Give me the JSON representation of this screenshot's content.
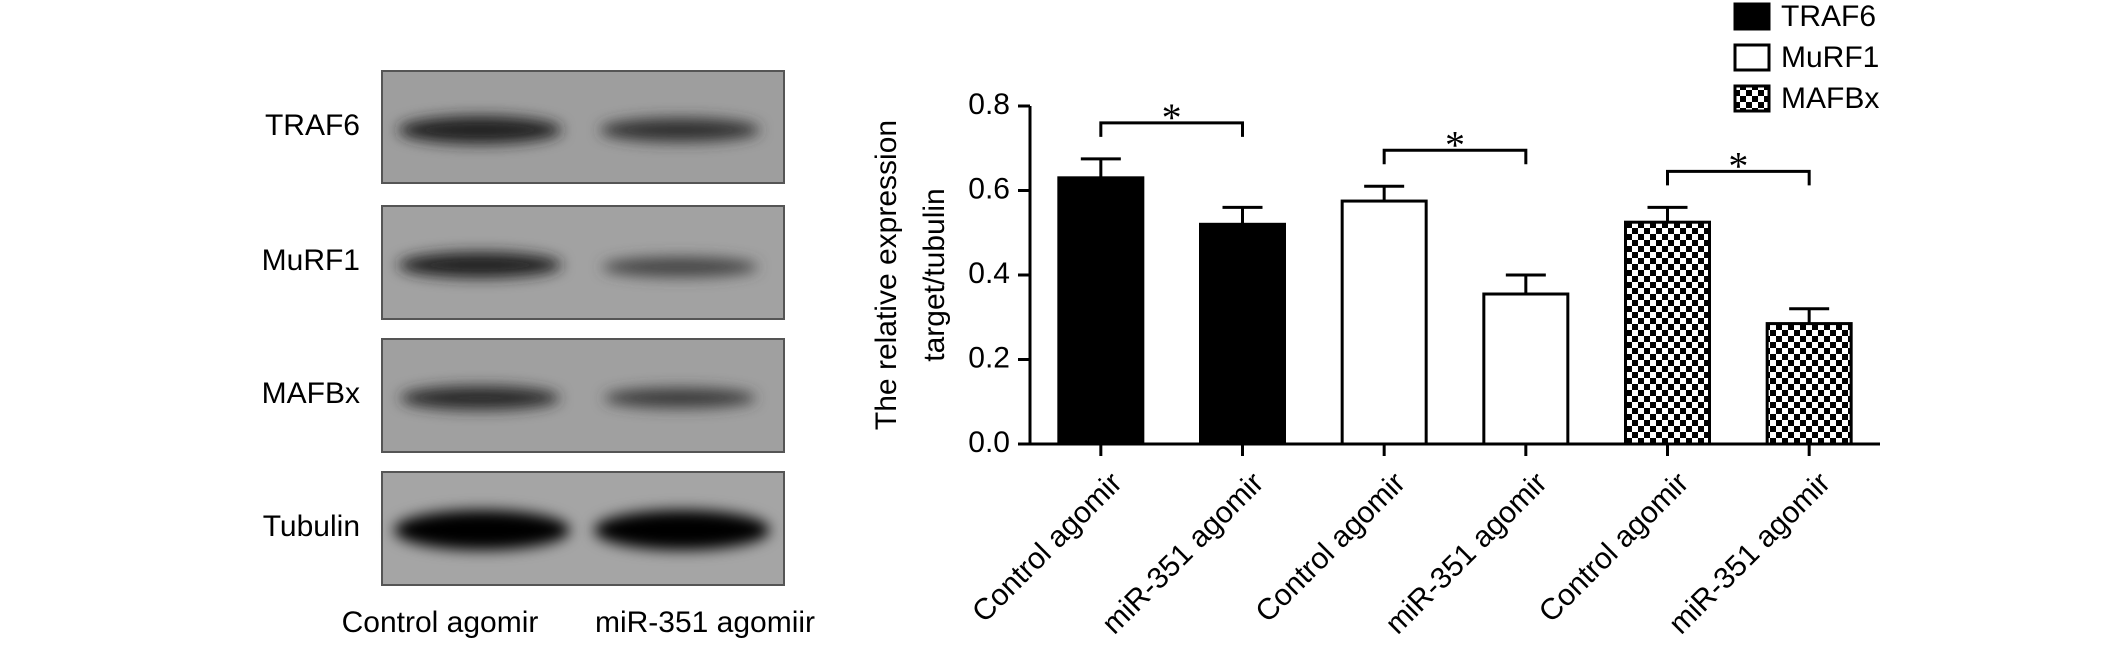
{
  "blot": {
    "rows": [
      "TRAF6",
      "MuRF1",
      "MAFBx",
      "Tubulin"
    ],
    "lanes": [
      "Control agomir",
      "miR-351 agomiir"
    ]
  },
  "chart_data": {
    "type": "bar",
    "ylabel": [
      "The relative expression",
      "target/tubulin"
    ],
    "categories": [
      "Control agomir",
      "miR-351 agomir",
      "Control agomir",
      "miR-351 agomir",
      "Control agomir",
      "miR-351 agomir"
    ],
    "series": [
      {
        "name": "TRAF6",
        "color": "#000000",
        "values": [
          0.63,
          0.52,
          null,
          null,
          null,
          null
        ],
        "errors": [
          0.045,
          0.04,
          null,
          null,
          null,
          null
        ]
      },
      {
        "name": "MuRF1",
        "color": "#ffffff",
        "values": [
          null,
          null,
          0.575,
          0.355,
          null,
          null
        ],
        "errors": [
          null,
          null,
          0.035,
          0.045,
          null,
          null
        ]
      },
      {
        "name": "MAFBx",
        "color": "#000000",
        "pattern": "checker",
        "values": [
          null,
          null,
          null,
          null,
          0.525,
          0.285
        ],
        "errors": [
          null,
          null,
          null,
          null,
          0.035,
          0.035
        ]
      }
    ],
    "annotations": [
      "*",
      "*",
      "*"
    ],
    "ylim": [
      0,
      0.8
    ],
    "yticks": [
      {
        "value": 0,
        "label": "0.0"
      },
      0.2,
      0.4,
      0.6,
      0.8
    ]
  }
}
